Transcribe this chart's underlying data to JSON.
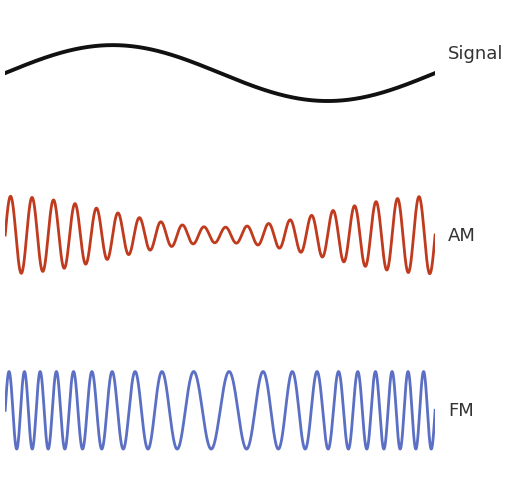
{
  "signal_color": "#111111",
  "am_color": "#c03a1e",
  "fm_color": "#5b6fc4",
  "signal_label": "Signal",
  "am_label": "AM",
  "fm_label": "FM",
  "signal_freq": 1.0,
  "carrier_freq": 20.0,
  "lw_signal": 2.8,
  "lw_am": 2.0,
  "lw_fm": 2.0,
  "label_fontsize": 13,
  "bg_color": "#ffffff",
  "fig_width": 5.18,
  "fig_height": 4.89,
  "am_env_min": 0.2,
  "am_env_max": 1.0,
  "fm_deviation": 8.0
}
